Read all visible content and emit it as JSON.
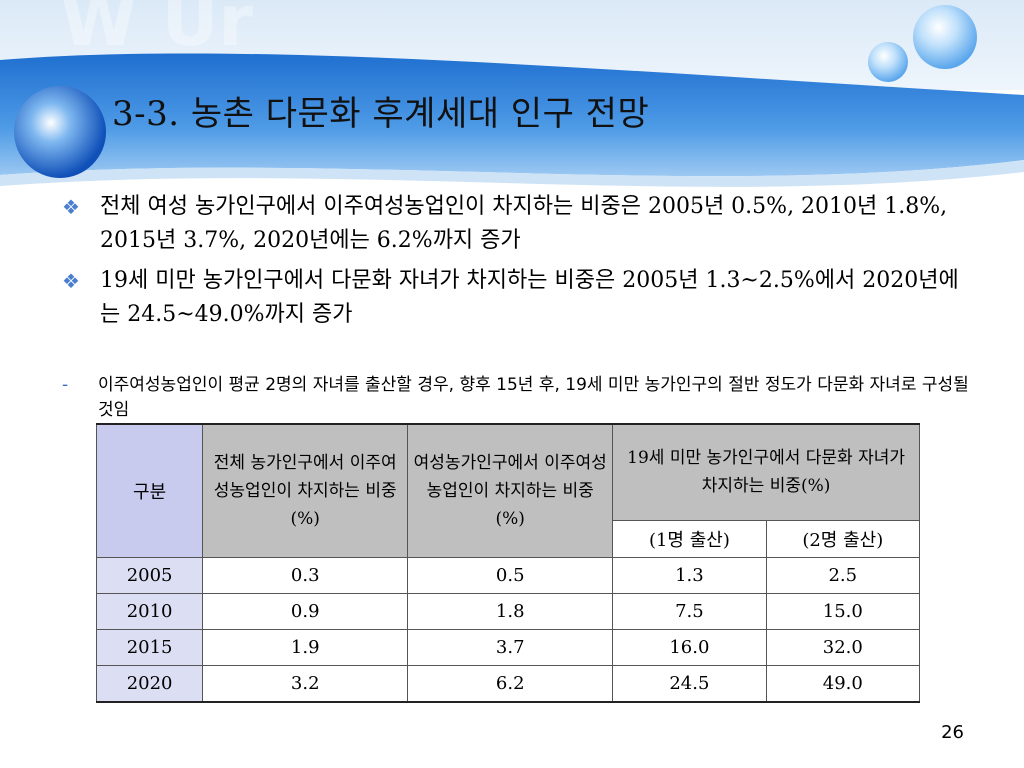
{
  "slide": {
    "title": "3-3. 농촌 다문화 후계세대 인구 전망",
    "page_number": "26"
  },
  "bullets": [
    {
      "icon": "diamond-bullet-icon",
      "text": "전체 여성 농가인구에서 이주여성농업인이 차지하는 비중은 2005년 0.5%, 2010년 1.8%, 2015년 3.7%, 2020년에는 6.2%까지 증가"
    },
    {
      "icon": "diamond-bullet-icon",
      "text": "19세 미만 농가인구에서 다문화 자녀가 차지하는 비중은 2005년 1.3~2.5%에서 2020년에는 24.5~49.0%까지 증가"
    }
  ],
  "subnote": {
    "dash": "-",
    "text": "이주여성농업인이 평균 2명의 자녀를 출산할 경우, 향후 15년 후, 19세 미만 농가인구의 절반 정도가 다문화 자녀로 구성될 것임"
  },
  "table": {
    "headers": {
      "col0": "구분",
      "col1": "전체 농가인구에서 이주여성농업인이 차지하는 비중(%)",
      "col2": "여성농가인구에서 이주여성농업인이 차지하는 비중(%)",
      "col3": "19세 미만 농가인구에서 다문화 자녀가 차지하는 비중(%)",
      "col3a": "(1명 출산)",
      "col3b": "(2명 출산)"
    },
    "rows": [
      {
        "year": "2005",
        "c1": "0.3",
        "c2": "0.5",
        "c3a": "1.3",
        "c3b": "2.5"
      },
      {
        "year": "2010",
        "c1": "0.9",
        "c2": "1.8",
        "c3a": "7.5",
        "c3b": "15.0"
      },
      {
        "year": "2015",
        "c1": "1.9",
        "c2": "3.7",
        "c3a": "16.0",
        "c3b": "32.0"
      },
      {
        "year": "2020",
        "c1": "3.2",
        "c2": "6.2",
        "c3a": "24.5",
        "c3b": "49.0"
      }
    ]
  },
  "colors": {
    "header_blue": "#2f7fd6",
    "bullet_blue": "#4a7fd0",
    "table_header_gray": "#bfbfbf",
    "table_header_lavender": "#c9cbee",
    "row_label_lavender": "#dcdff3"
  }
}
